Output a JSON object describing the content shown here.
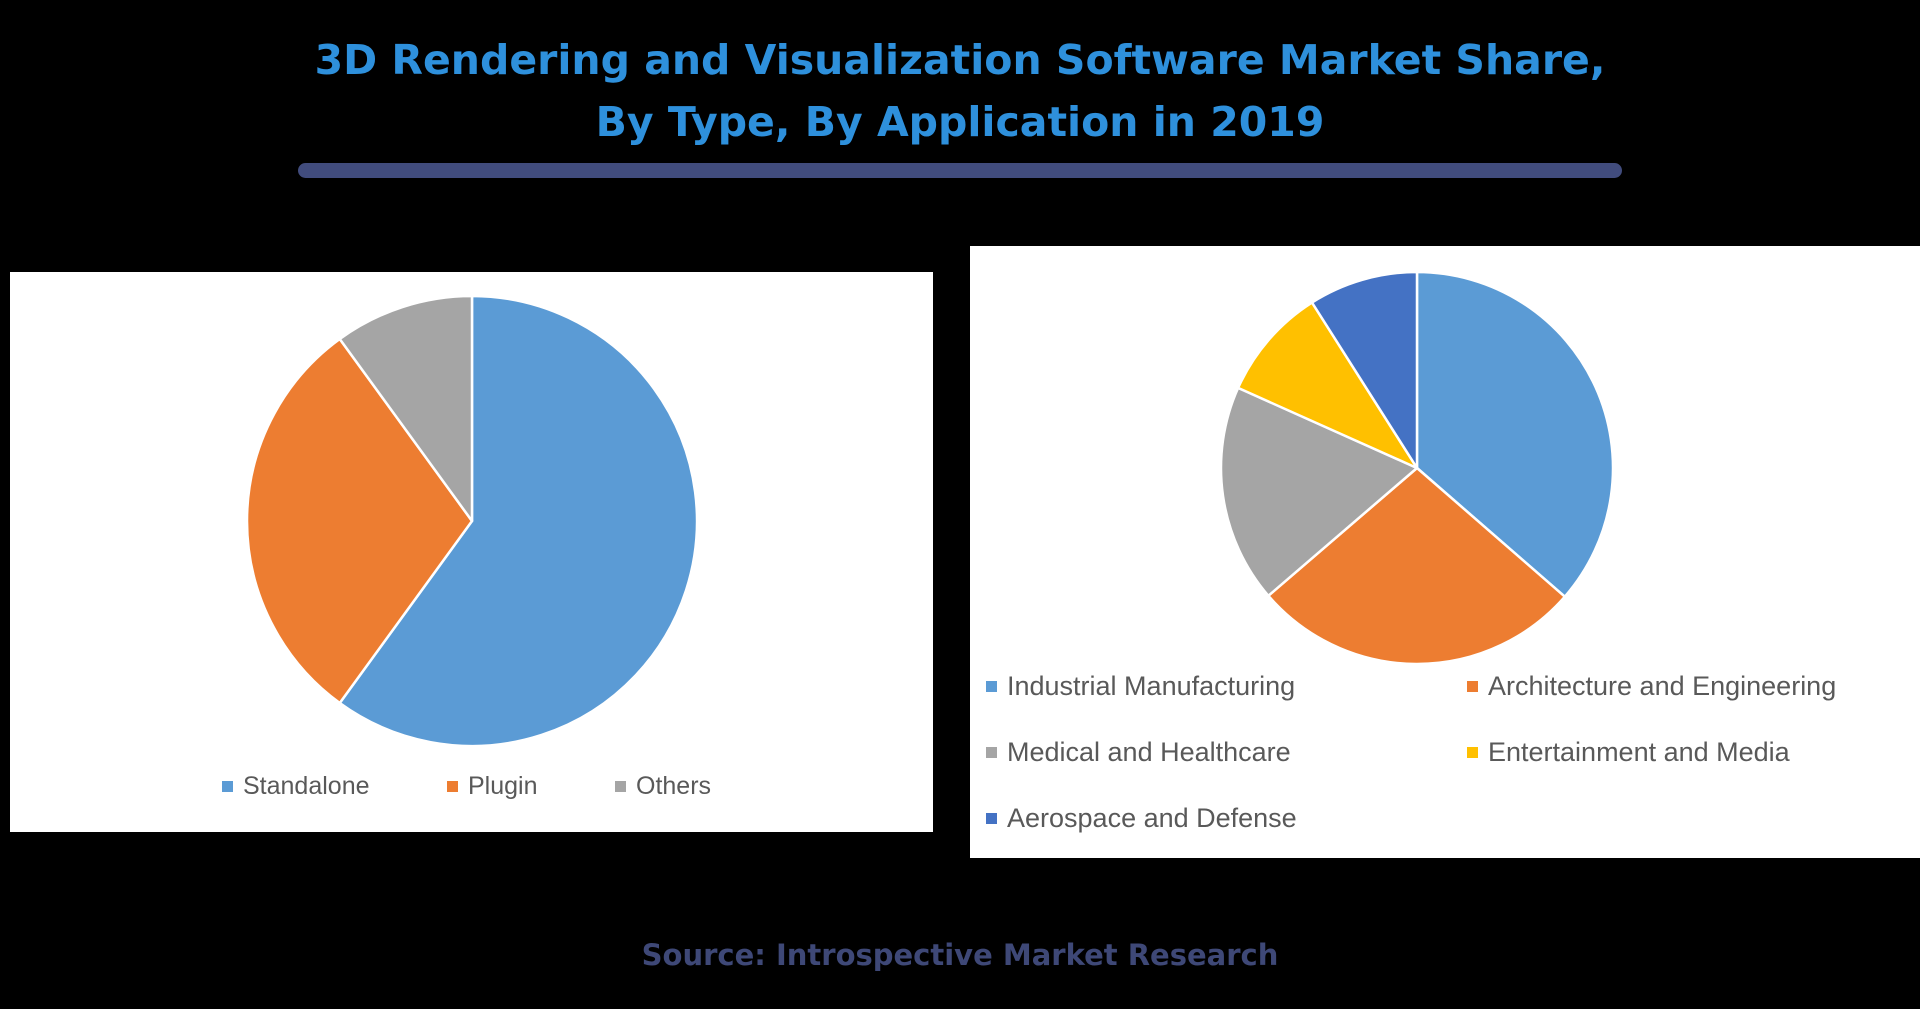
{
  "header": {
    "title_line_1": "3D Rendering and Visualization Software Market Share,",
    "title_line_2": "By Type, By Application in 2019",
    "title_color": "#2e90dc",
    "underline_color": "#414c7d"
  },
  "chart_data": [
    {
      "type": "pie",
      "title": "By Type",
      "categories": [
        "Standalone",
        "Plugin",
        "Others"
      ],
      "values": [
        60,
        30,
        10
      ],
      "unit": "% share (estimated from slice angles)",
      "colors": [
        "#5b9bd5",
        "#ed7d31",
        "#a5a5a5"
      ],
      "start_angle_deg": 0,
      "direction": "clockwise",
      "legend_position": "bottom"
    },
    {
      "type": "pie",
      "title": "By Application",
      "categories": [
        "Industrial Manufacturing",
        "Architecture and Engineering",
        "Medical and Healthcare",
        "Entertainment and Media",
        "Aerospace and Defense"
      ],
      "values": [
        36.4,
        27.3,
        18.0,
        9.3,
        9.0
      ],
      "unit": "% share (estimated from slice angles)",
      "colors": [
        "#5b9bd5",
        "#ed7d31",
        "#a5a5a5",
        "#ffc000",
        "#4472c4"
      ],
      "start_angle_deg": 0,
      "direction": "clockwise",
      "legend_position": "bottom"
    }
  ],
  "footer": {
    "source": "Source: Introspective Market Research",
    "source_color": "#3e4877"
  }
}
